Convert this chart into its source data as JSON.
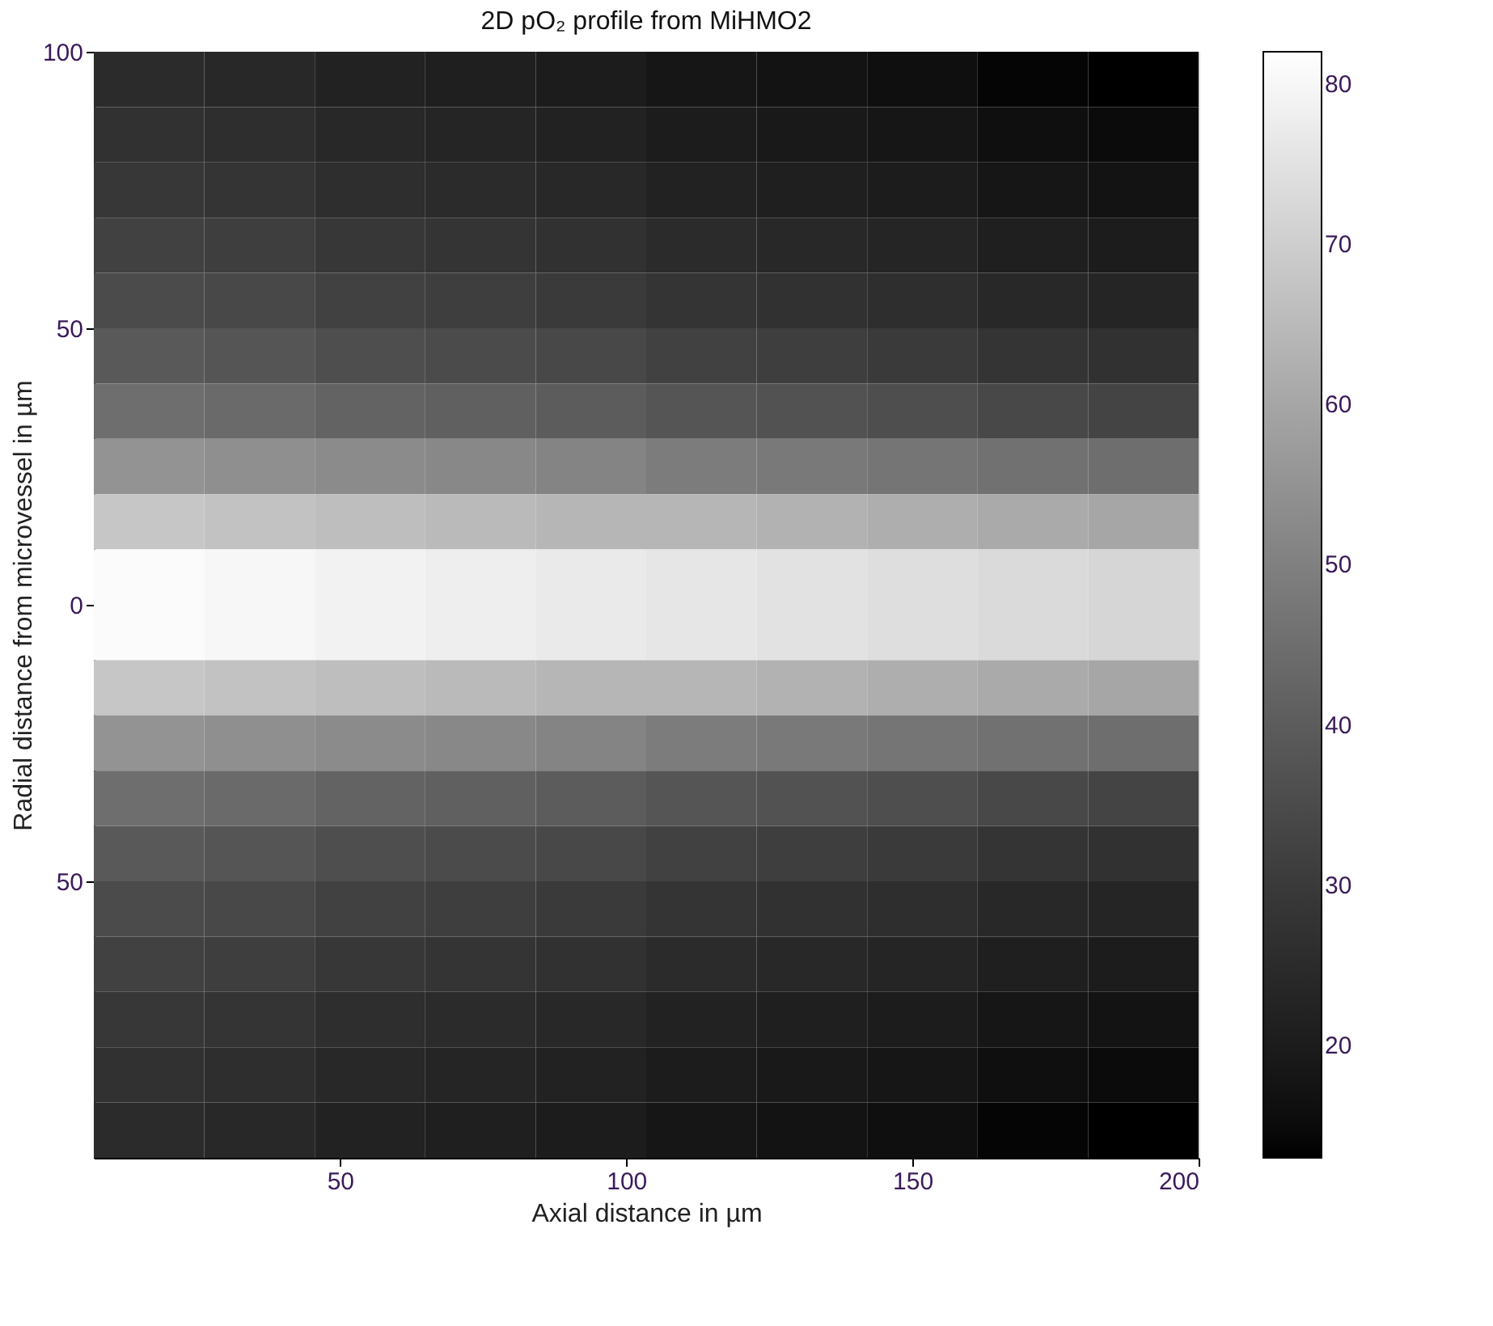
{
  "chart_data": {
    "type": "heatmap",
    "title": "2D pO₂ profile from MiHMO2",
    "xlabel": "Axial distance in µm",
    "ylabel": "Radial distance from microvessel in µm",
    "x": [
      16.65,
      35.95,
      55.25,
      74.55,
      93.85,
      113.15,
      132.45,
      151.75,
      171.05,
      190.35
    ],
    "y": [
      95,
      85,
      75,
      65,
      55,
      45,
      35,
      25,
      15,
      5,
      -5,
      -15,
      -25,
      -35,
      -45,
      -55,
      -65,
      -75,
      -85,
      -95
    ],
    "cells": [
      [
        25,
        24,
        22,
        21,
        20,
        18,
        17,
        16,
        14,
        13
      ],
      [
        27,
        26,
        24,
        23,
        22,
        20,
        19,
        18,
        16,
        15
      ],
      [
        29,
        28,
        26,
        25,
        24,
        22,
        21,
        20,
        18,
        17
      ],
      [
        32,
        31,
        29,
        28,
        27,
        25,
        24,
        23,
        21,
        20
      ],
      [
        35,
        34,
        32,
        31,
        30,
        28,
        27,
        26,
        24,
        23
      ],
      [
        39,
        38,
        36,
        35,
        34,
        32,
        31,
        30,
        28,
        27
      ],
      [
        45,
        44,
        42,
        41,
        40,
        38,
        37,
        36,
        34,
        33
      ],
      [
        55,
        54,
        53,
        52,
        51,
        49,
        48,
        47,
        46,
        45
      ],
      [
        68,
        67,
        66,
        65,
        64,
        64,
        63,
        62,
        61,
        60
      ],
      [
        81,
        80,
        79,
        78,
        77,
        76,
        75,
        74,
        73,
        72
      ],
      [
        81,
        80,
        79,
        78,
        77,
        76,
        75,
        74,
        73,
        72
      ],
      [
        68,
        67,
        66,
        65,
        64,
        64,
        63,
        62,
        61,
        60
      ],
      [
        55,
        54,
        53,
        52,
        51,
        49,
        48,
        47,
        46,
        45
      ],
      [
        45,
        44,
        42,
        41,
        40,
        38,
        37,
        36,
        34,
        33
      ],
      [
        39,
        38,
        36,
        35,
        34,
        32,
        31,
        30,
        28,
        27
      ],
      [
        35,
        34,
        32,
        31,
        30,
        28,
        27,
        26,
        24,
        23
      ],
      [
        32,
        31,
        29,
        28,
        27,
        25,
        24,
        23,
        21,
        20
      ],
      [
        29,
        28,
        26,
        25,
        24,
        22,
        21,
        20,
        18,
        17
      ],
      [
        27,
        26,
        24,
        23,
        22,
        20,
        19,
        18,
        16,
        15
      ],
      [
        25,
        24,
        22,
        21,
        20,
        18,
        17,
        16,
        14,
        13
      ]
    ],
    "xlim": [
      7,
      200
    ],
    "xticks": [
      50,
      100,
      150,
      200
    ],
    "ylim": [
      -100,
      100
    ],
    "yticks": [
      100,
      50,
      0,
      {
        "value": -50,
        "label": "50"
      }
    ],
    "clim": [
      13,
      82
    ],
    "cticks": [
      20,
      30,
      40,
      50,
      60,
      70,
      80
    ],
    "grid": false
  }
}
